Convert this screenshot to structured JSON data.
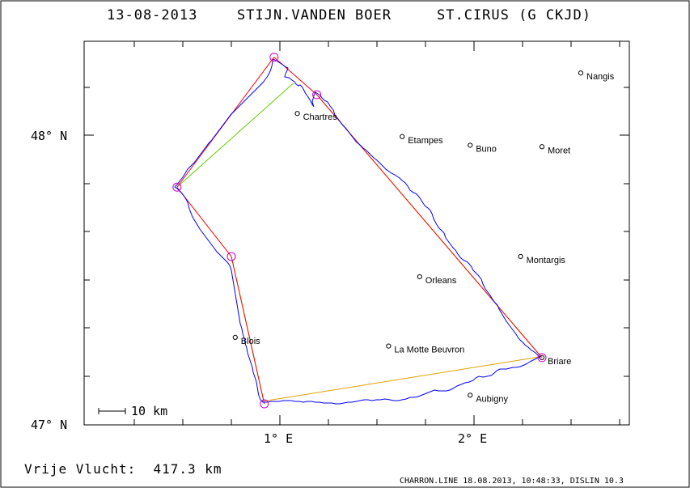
{
  "header": {
    "date": "13-08-2013",
    "pilot": "STIJN.VANDEN BOER",
    "glider": "ST.CIRUS (G CKJD)"
  },
  "axes": {
    "lat_labels": [
      "48° N",
      "47° N"
    ],
    "lon_labels": [
      "1° E",
      "2° E"
    ]
  },
  "scale_bar": {
    "label": "10 km"
  },
  "towns": [
    {
      "name": "Nangis",
      "lon": 2.55,
      "lat": 48.215
    },
    {
      "name": "Chartres",
      "lon": 1.09,
      "lat": 48.075
    },
    {
      "name": "Etampes",
      "lon": 1.63,
      "lat": 47.995
    },
    {
      "name": "Buno",
      "lon": 1.98,
      "lat": 47.965
    },
    {
      "name": "Moret",
      "lon": 2.35,
      "lat": 47.96
    },
    {
      "name": "Montargis",
      "lon": 2.24,
      "lat": 47.58
    },
    {
      "name": "Orleans",
      "lon": 1.72,
      "lat": 47.51
    },
    {
      "name": "Blois",
      "lon": 0.77,
      "lat": 47.3
    },
    {
      "name": "La Motte Beuvron",
      "lon": 1.56,
      "lat": 47.27
    },
    {
      "name": "Briare",
      "lon": 2.35,
      "lat": 47.23
    },
    {
      "name": "Aubigny",
      "lon": 1.98,
      "lat": 47.1
    }
  ],
  "turnpoints": [
    {
      "lon": 0.97,
      "lat": 48.27
    },
    {
      "lon": 1.19,
      "lat": 48.14
    },
    {
      "lon": 2.35,
      "lat": 47.23
    },
    {
      "lon": 0.92,
      "lat": 47.07
    },
    {
      "lon": 0.75,
      "lat": 47.58
    },
    {
      "lon": 0.47,
      "lat": 47.82
    }
  ],
  "colors": {
    "track": "#0000ff",
    "task": "#ff0000",
    "optimized": "#66cc00",
    "turnpoint": "#cc00cc"
  },
  "footer": {
    "distance": "Vrije Vlucht:  417.3 km",
    "info": "CHARRON.LINE 18.08.2013, 10:48:33, DISLIN 10.3"
  }
}
